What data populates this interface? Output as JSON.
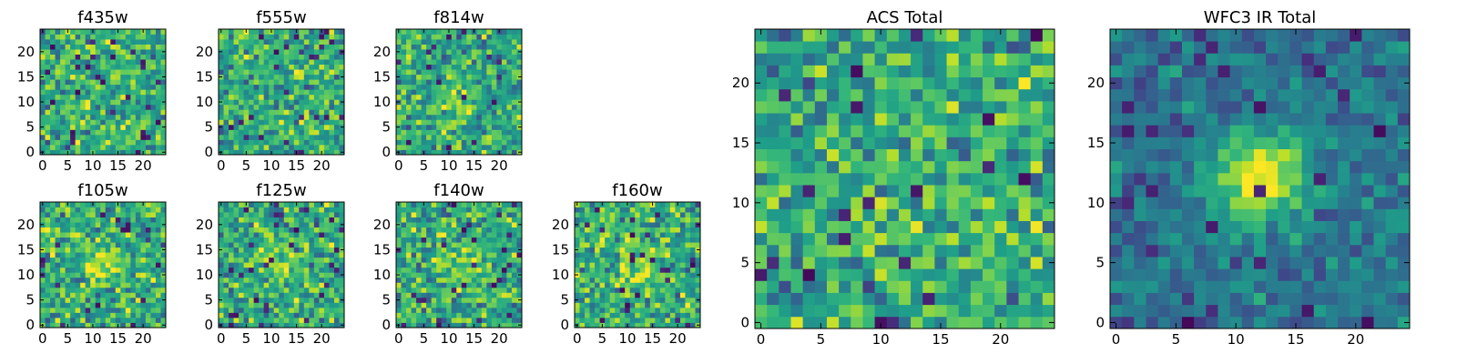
{
  "chart_data": [
    {
      "type": "heatmap",
      "title": "f435w",
      "xticks": [
        0,
        5,
        10,
        15,
        20
      ],
      "yticks": [
        0,
        5,
        10,
        15,
        20
      ],
      "xlim": [
        -0.5,
        24.5
      ],
      "ylim": [
        -0.5,
        24.5
      ],
      "grid_size": 25,
      "source_center": [
        12,
        12
      ],
      "source_peak": 0.0,
      "seed": 11
    },
    {
      "type": "heatmap",
      "title": "f555w",
      "xticks": [
        0,
        5,
        10,
        15,
        20
      ],
      "yticks": [
        0,
        5,
        10,
        15,
        20
      ],
      "xlim": [
        -0.5,
        24.5
      ],
      "ylim": [
        -0.5,
        24.5
      ],
      "grid_size": 25,
      "source_center": [
        12,
        12
      ],
      "source_peak": 0.05,
      "seed": 23
    },
    {
      "type": "heatmap",
      "title": "f814w",
      "xticks": [
        0,
        5,
        10,
        15,
        20
      ],
      "yticks": [
        0,
        5,
        10,
        15,
        20
      ],
      "xlim": [
        -0.5,
        24.5
      ],
      "ylim": [
        -0.5,
        24.5
      ],
      "grid_size": 25,
      "source_center": [
        12,
        11
      ],
      "source_peak": 0.35,
      "seed": 37
    },
    {
      "type": "heatmap",
      "title": "f105w",
      "xticks": [
        0,
        5,
        10,
        15,
        20
      ],
      "yticks": [
        0,
        5,
        10,
        15,
        20
      ],
      "xlim": [
        -0.5,
        24.5
      ],
      "ylim": [
        -0.5,
        24.5
      ],
      "grid_size": 25,
      "source_center": [
        12,
        12
      ],
      "source_peak": 0.6,
      "seed": 41
    },
    {
      "type": "heatmap",
      "title": "f125w",
      "xticks": [
        0,
        5,
        10,
        15,
        20
      ],
      "yticks": [
        0,
        5,
        10,
        15,
        20
      ],
      "xlim": [
        -0.5,
        24.5
      ],
      "ylim": [
        -0.5,
        24.5
      ],
      "grid_size": 25,
      "source_center": [
        12,
        13
      ],
      "source_peak": 0.45,
      "seed": 53
    },
    {
      "type": "heatmap",
      "title": "f140w",
      "xticks": [
        0,
        5,
        10,
        15,
        20
      ],
      "yticks": [
        0,
        5,
        10,
        15,
        20
      ],
      "xlim": [
        -0.5,
        24.5
      ],
      "ylim": [
        -0.5,
        24.5
      ],
      "grid_size": 25,
      "source_center": [
        13,
        11
      ],
      "source_peak": 0.55,
      "seed": 67
    },
    {
      "type": "heatmap",
      "title": "f160w",
      "xticks": [
        0,
        5,
        10,
        15,
        20
      ],
      "yticks": [
        0,
        5,
        10,
        15,
        20
      ],
      "xlim": [
        -0.5,
        24.5
      ],
      "ylim": [
        -0.5,
        24.5
      ],
      "grid_size": 25,
      "source_center": [
        12,
        12
      ],
      "source_peak": 0.75,
      "seed": 71
    },
    {
      "type": "heatmap",
      "title": "ACS Total",
      "xticks": [
        0,
        5,
        10,
        15,
        20
      ],
      "yticks": [
        0,
        5,
        10,
        15,
        20
      ],
      "xlim": [
        -0.5,
        24.5
      ],
      "ylim": [
        -0.5,
        24.5
      ],
      "grid_size": 25,
      "source_center": [
        12,
        12
      ],
      "source_peak": 0.3,
      "seed": 83
    },
    {
      "type": "heatmap",
      "title": "WFC3 IR Total",
      "xticks": [
        0,
        5,
        10,
        15,
        20
      ],
      "yticks": [
        0,
        5,
        10,
        15,
        20
      ],
      "xlim": [
        -0.5,
        24.5
      ],
      "ylim": [
        -0.5,
        24.5
      ],
      "grid_size": 25,
      "source_center": [
        12,
        12
      ],
      "source_peak": 1.0,
      "seed": 97
    }
  ],
  "colormap": [
    "#440154",
    "#482878",
    "#3e4989",
    "#31688e",
    "#26828e",
    "#1f9e89",
    "#35b779",
    "#6ece58",
    "#b5de2b",
    "#fde725"
  ]
}
